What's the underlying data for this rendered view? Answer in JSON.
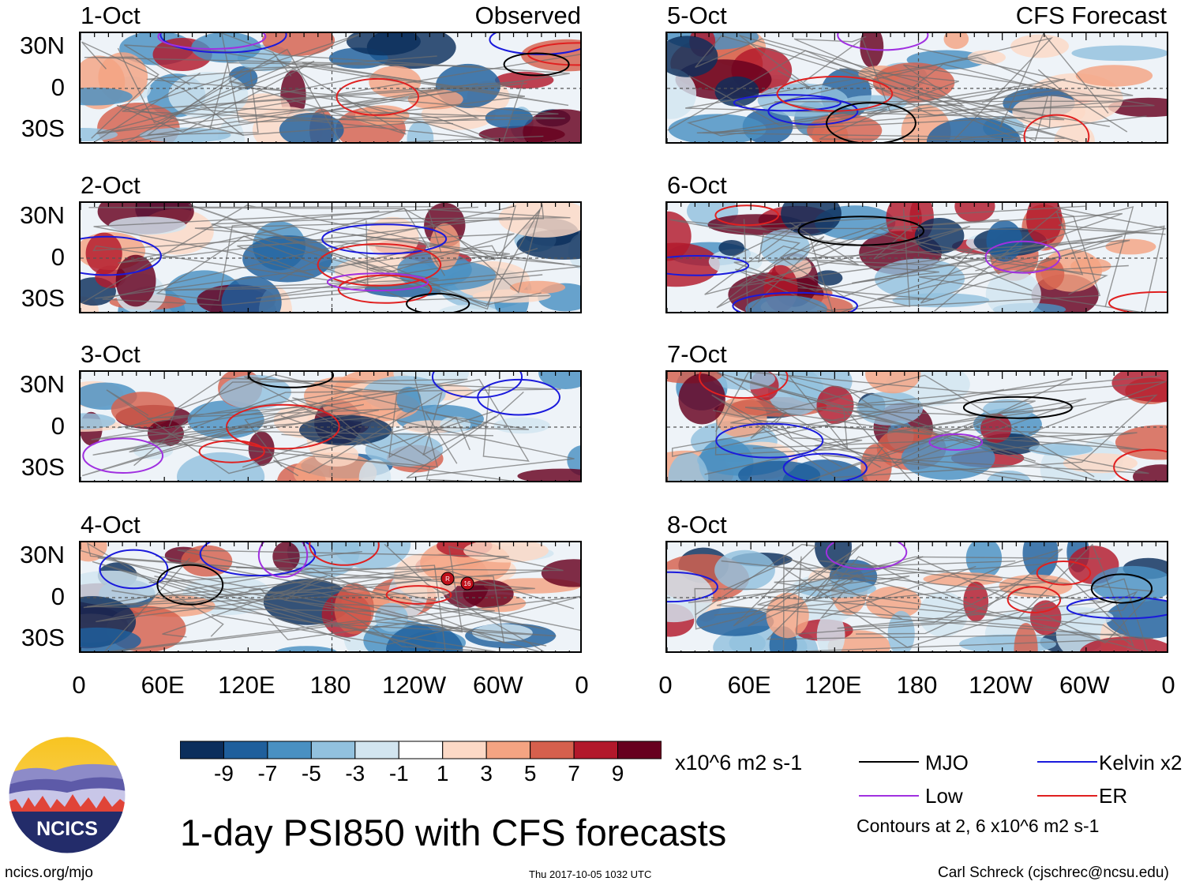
{
  "chart_data": {
    "type": "heatmap",
    "title": "1-day PSI850 with CFS forecasts",
    "columns": {
      "left": "Observed",
      "right": "CFS Forecast"
    },
    "variable": "PSI850",
    "units": "x10^6 m2 s-1",
    "lat_ticks": [
      "30N",
      "0",
      "30S"
    ],
    "lon_ticks": [
      "0",
      "60E",
      "120E",
      "180",
      "120W",
      "60W",
      "0"
    ],
    "panels": [
      {
        "date": "1-Oct",
        "column": "Observed"
      },
      {
        "date": "2-Oct",
        "column": "Observed"
      },
      {
        "date": "3-Oct",
        "column": "Observed"
      },
      {
        "date": "4-Oct",
        "column": "Observed"
      },
      {
        "date": "5-Oct",
        "column": "CFS Forecast"
      },
      {
        "date": "6-Oct",
        "column": "CFS Forecast"
      },
      {
        "date": "7-Oct",
        "column": "CFS Forecast"
      },
      {
        "date": "8-Oct",
        "column": "CFS Forecast"
      }
    ],
    "colorbar": {
      "labels": [
        "-9",
        "-7",
        "-5",
        "-3",
        "-1",
        "1",
        "3",
        "5",
        "7",
        "9"
      ],
      "colors": [
        "#0b2e5c",
        "#1f5f9c",
        "#4990c2",
        "#92c1de",
        "#d2e5f0",
        "#ffffff",
        "#fcd9c6",
        "#f4a482",
        "#d6604d",
        "#b2182b",
        "#67001f"
      ]
    },
    "legend": [
      {
        "label": "MJO",
        "color": "#000000"
      },
      {
        "label": "Kelvin x2",
        "color": "#1a1adc"
      },
      {
        "label": "Low",
        "color": "#a030e0"
      },
      {
        "label": "ER",
        "color": "#e02020"
      }
    ],
    "contour_note": "Contours at 2, 6 x10^6 m2 s-1",
    "storm_markers": [
      "R",
      "16"
    ]
  },
  "footer": {
    "site": "ncics.org/mjo",
    "timestamp": "Thu 2017-10-05 1032 UTC",
    "author": "Carl Schreck (cjschrec@ncsu.edu)",
    "logo_text": "NCICS"
  }
}
